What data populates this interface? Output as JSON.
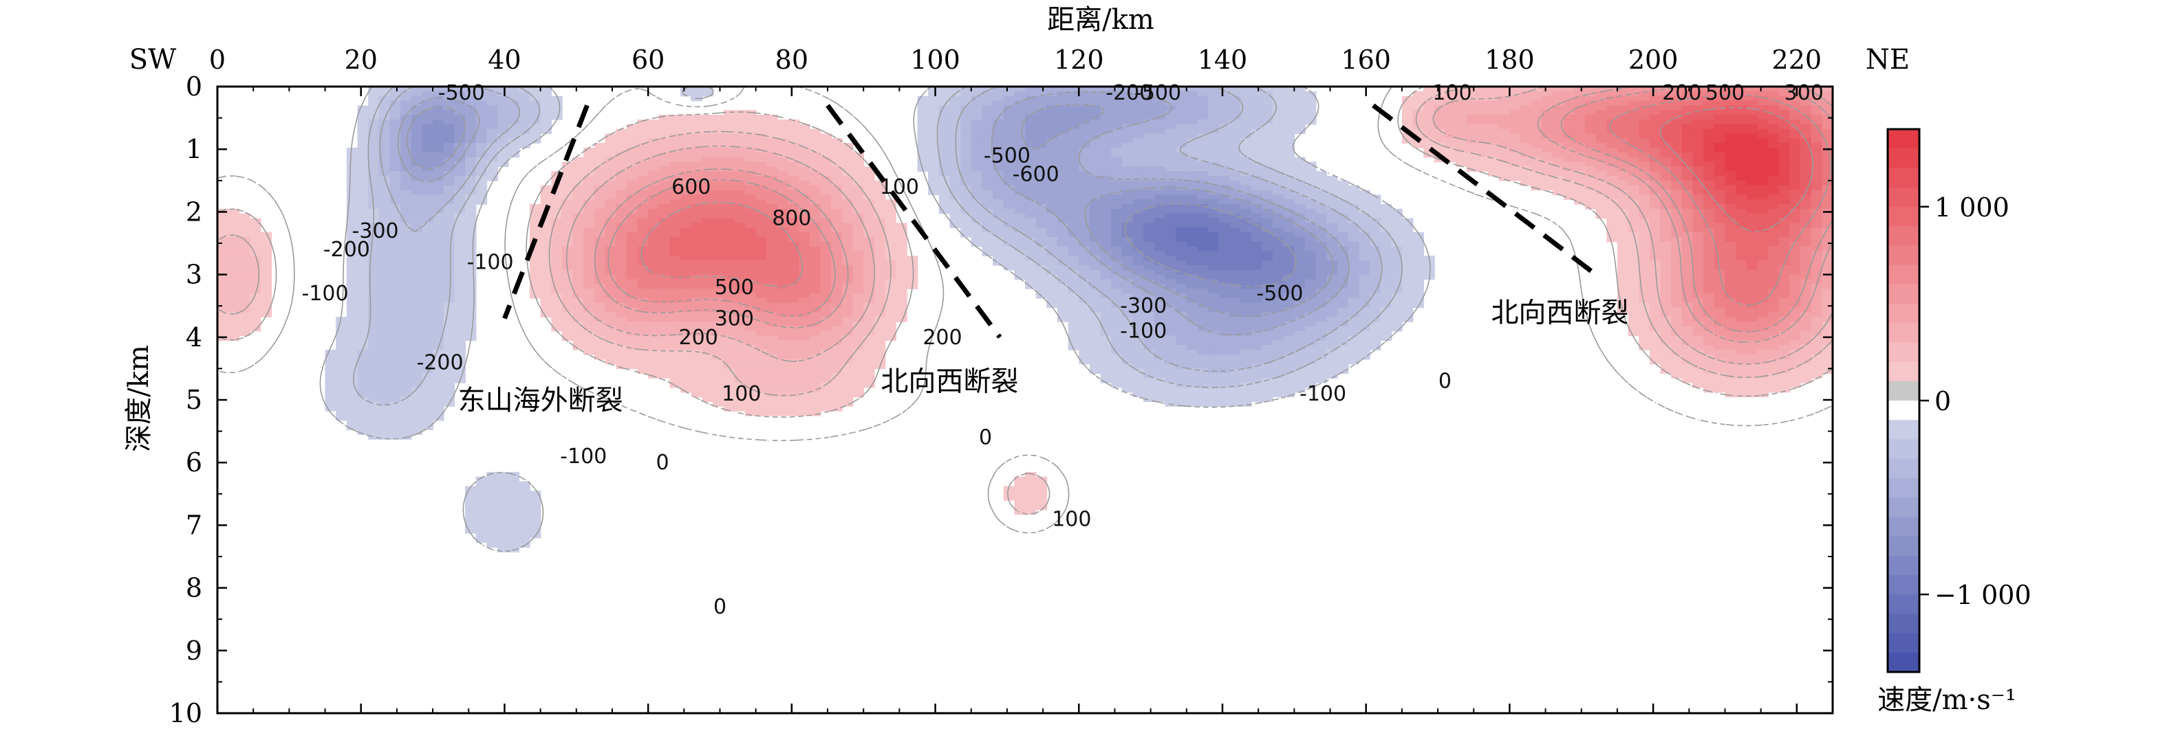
{
  "chart_data": {
    "type": "heatmap",
    "title": "",
    "xlabel": "距离/km",
    "ylabel": "深度/km",
    "x_ticks": [
      0,
      20,
      40,
      60,
      80,
      100,
      120,
      140,
      160,
      180,
      200,
      220
    ],
    "y_ticks": [
      0,
      1,
      2,
      3,
      4,
      5,
      6,
      7,
      8,
      9,
      10
    ],
    "xlim": [
      0,
      225
    ],
    "ylim": [
      0,
      10
    ],
    "y_inverted": true,
    "direction_left": "SW",
    "direction_right": "NE",
    "colorbar": {
      "label": "速度/m·s⁻¹",
      "ticks": [
        "1 000",
        "0",
        "−1 000"
      ],
      "tick_values": [
        1000,
        0,
        -1000
      ],
      "range": [
        -1400,
        1400
      ],
      "positive_color": "#e3313c",
      "negative_color": "#3d4aa6"
    },
    "anomalies": [
      {
        "x": 70,
        "z": 2.3,
        "value": 880,
        "sx": 18,
        "sz": 1.3
      },
      {
        "x": 82,
        "z": 3.4,
        "value": 420,
        "sx": 10,
        "sz": 1.0
      },
      {
        "x": 58,
        "z": 3.2,
        "value": 320,
        "sx": 10,
        "sz": 1.0
      },
      {
        "x": 78,
        "z": 4.8,
        "value": 160,
        "sx": 14,
        "sz": 0.6
      },
      {
        "x": 215,
        "z": 1.3,
        "value": 1250,
        "sx": 14,
        "sz": 1.4
      },
      {
        "x": 195,
        "z": 0.6,
        "value": 700,
        "sx": 18,
        "sz": 0.8
      },
      {
        "x": 213,
        "z": 3.4,
        "value": 700,
        "sx": 12,
        "sz": 1.1
      },
      {
        "x": 172,
        "z": 0.5,
        "value": 250,
        "sx": 7,
        "sz": 0.5
      },
      {
        "x": 2,
        "z": 3.0,
        "value": 300,
        "sx": 6,
        "sz": 1.0
      },
      {
        "x": 113,
        "z": 6.5,
        "value": 170,
        "sx": 4,
        "sz": 0.45
      },
      {
        "x": 133,
        "z": 2.3,
        "value": -880,
        "sx": 15,
        "sz": 1.0
      },
      {
        "x": 112,
        "z": 1.2,
        "value": -520,
        "sx": 12,
        "sz": 1.1
      },
      {
        "x": 150,
        "z": 2.9,
        "value": -600,
        "sx": 14,
        "sz": 1.0
      },
      {
        "x": 128,
        "z": 0.3,
        "value": -500,
        "sx": 20,
        "sz": 0.6
      },
      {
        "x": 138,
        "z": 4.1,
        "value": -350,
        "sx": 16,
        "sz": 0.9
      },
      {
        "x": 30,
        "z": 0.8,
        "value": -620,
        "sx": 7,
        "sz": 0.9
      },
      {
        "x": 27,
        "z": 3.0,
        "value": -300,
        "sx": 9,
        "sz": 2.2
      },
      {
        "x": 40,
        "z": 0.4,
        "value": -300,
        "sx": 8,
        "sz": 0.6
      },
      {
        "x": 40,
        "z": 6.8,
        "value": -180,
        "sx": 7,
        "sz": 0.8
      },
      {
        "x": 20,
        "z": 4.8,
        "value": -130,
        "sx": 8,
        "sz": 0.8
      },
      {
        "x": 67,
        "z": 0.1,
        "value": -200,
        "sx": 4,
        "sz": 0.2
      }
    ],
    "contour_labels": [
      {
        "text": "-500",
        "x": 34,
        "z": 0.1
      },
      {
        "text": "-300",
        "x": 22,
        "z": 2.3
      },
      {
        "text": "-200",
        "x": 18,
        "z": 2.6
      },
      {
        "text": "-100",
        "x": 15,
        "z": 3.3
      },
      {
        "text": "-100",
        "x": 38,
        "z": 2.8
      },
      {
        "text": "-200",
        "x": 31,
        "z": 4.4
      },
      {
        "text": "600",
        "x": 66,
        "z": 1.6
      },
      {
        "text": "800",
        "x": 80,
        "z": 2.1
      },
      {
        "text": "500",
        "x": 72,
        "z": 3.2
      },
      {
        "text": "300",
        "x": 72,
        "z": 3.7
      },
      {
        "text": "200",
        "x": 67,
        "z": 4.0
      },
      {
        "text": "100",
        "x": 73,
        "z": 4.9
      },
      {
        "text": "100",
        "x": 95,
        "z": 1.6
      },
      {
        "text": "200",
        "x": 101,
        "z": 4.0
      },
      {
        "text": "-500",
        "x": 110,
        "z": 1.1
      },
      {
        "text": "-600",
        "x": 114,
        "z": 1.4
      },
      {
        "text": "-300",
        "x": 129,
        "z": 3.5
      },
      {
        "text": "-100",
        "x": 129,
        "z": 3.9
      },
      {
        "text": "-500",
        "x": 148,
        "z": 3.3
      },
      {
        "text": "-100",
        "x": 154,
        "z": 4.9
      },
      {
        "text": "0",
        "x": 171,
        "z": 4.7
      },
      {
        "text": "-100",
        "x": 51,
        "z": 5.9
      },
      {
        "text": "0",
        "x": 62,
        "z": 6.0
      },
      {
        "text": "0",
        "x": 107,
        "z": 5.6
      },
      {
        "text": "100",
        "x": 119,
        "z": 6.9
      },
      {
        "text": "0",
        "x": 70,
        "z": 8.3
      },
      {
        "text": "100",
        "x": 172,
        "z": 0.1
      },
      {
        "text": "200",
        "x": 204,
        "z": 0.1
      },
      {
        "text": "500",
        "x": 210,
        "z": 0.1
      },
      {
        "text": "300",
        "x": 221,
        "z": 0.1
      },
      {
        "text": "-200",
        "x": 127,
        "z": 0.1
      },
      {
        "text": "-500",
        "x": 131,
        "z": 0.1
      }
    ],
    "faults": [
      {
        "name": "东山海外断裂",
        "label_x": 45,
        "label_z": 5.0,
        "line": [
          [
            51.5,
            0.3
          ],
          [
            40,
            3.7
          ]
        ]
      },
      {
        "name": "北向西断裂",
        "label_x": 102,
        "label_z": 4.7,
        "line": [
          [
            85,
            0.3
          ],
          [
            109,
            4.0
          ]
        ]
      },
      {
        "name": "北向西断裂",
        "label_x": 187,
        "label_z": 3.6,
        "line": [
          [
            161,
            0.3
          ],
          [
            192,
            3.0
          ]
        ]
      }
    ]
  }
}
